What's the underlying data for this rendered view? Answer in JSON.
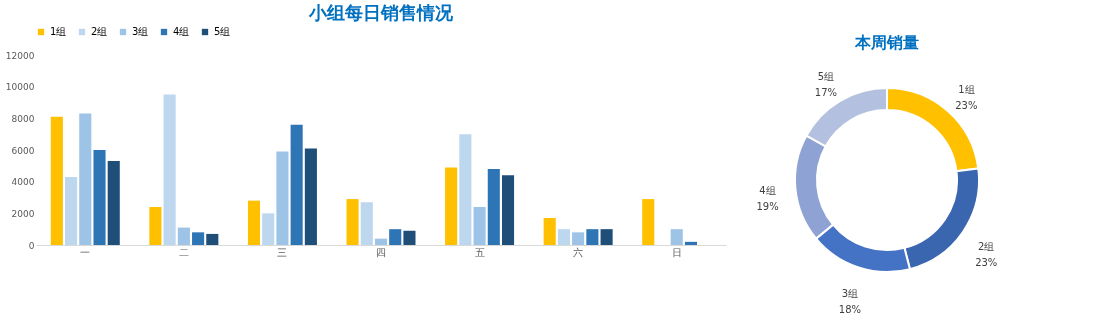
{
  "chart_data": [
    {
      "type": "bar",
      "title": "小组每日销售情况",
      "categories": [
        "一",
        "二",
        "三",
        "四",
        "五",
        "六",
        "日"
      ],
      "ylim": [
        0,
        12000
      ],
      "yticks": [
        0,
        2000,
        4000,
        6000,
        8000,
        10000,
        12000
      ],
      "grid": false,
      "legend": "top",
      "series": [
        {
          "name": "1组",
          "color": "#ffc000",
          "values": [
            8100,
            2400,
            2800,
            2900,
            4900,
            1700,
            2900
          ]
        },
        {
          "name": "2组",
          "color": "#bdd7ee",
          "values": [
            4300,
            9500,
            2000,
            2700,
            7000,
            1000,
            0
          ]
        },
        {
          "name": "3组",
          "color": "#9dc3e6",
          "values": [
            8300,
            1100,
            5900,
            400,
            2400,
            800,
            1000
          ]
        },
        {
          "name": "4组",
          "color": "#2e75b6",
          "values": [
            6000,
            800,
            7600,
            1000,
            4800,
            1000,
            200
          ]
        },
        {
          "name": "5组",
          "color": "#1f4e79",
          "values": [
            5300,
            700,
            6100,
            900,
            4400,
            1000,
            0
          ]
        }
      ]
    },
    {
      "type": "donut",
      "title": "本周销量",
      "categories": [
        "1组",
        "2组",
        "3组",
        "4组",
        "5组"
      ],
      "values": [
        23,
        23,
        18,
        19,
        17
      ],
      "value_labels": [
        "23%",
        "23%",
        "18%",
        "19%",
        "17%"
      ],
      "colors": [
        "#ffc000",
        "#3a66b0",
        "#4472c4",
        "#8fa2d4",
        "#b4c0e0"
      ],
      "legend": false
    }
  ]
}
